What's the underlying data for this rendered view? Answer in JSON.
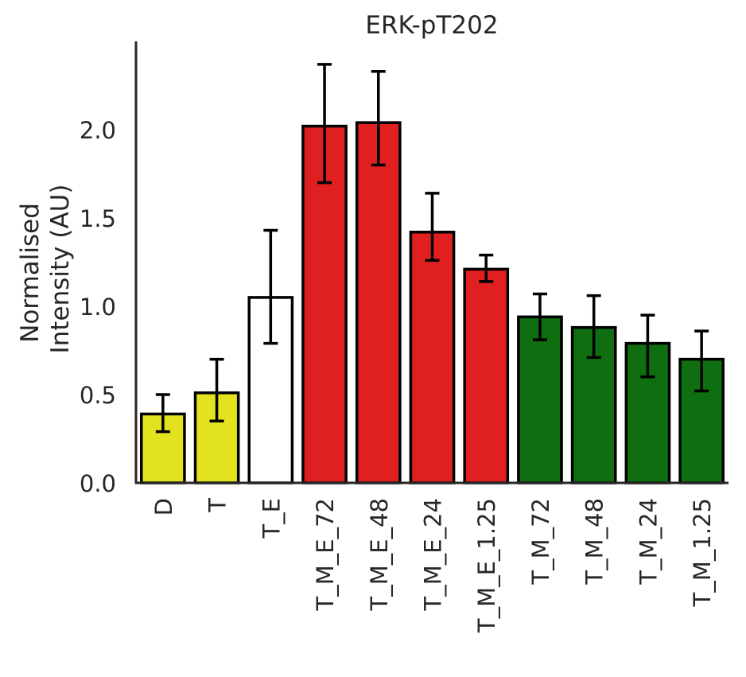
{
  "chart_data": {
    "type": "bar",
    "title": "ERK-pT202",
    "ylabel_lines": [
      "Normalised",
      "Intensity (AU)"
    ],
    "xlabel": "",
    "categories": [
      "D",
      "T",
      "T_E",
      "T_M_E_72",
      "T_M_E_48",
      "T_M_E_24",
      "T_M_E_1.25",
      "T_M_72",
      "T_M_48",
      "T_M_24",
      "T_M_1.25"
    ],
    "values": [
      0.39,
      0.51,
      1.05,
      2.02,
      2.04,
      1.42,
      1.21,
      0.94,
      0.88,
      0.79,
      0.7
    ],
    "err_low": [
      0.29,
      0.35,
      0.79,
      1.7,
      1.8,
      1.26,
      1.14,
      0.81,
      0.71,
      0.6,
      0.52
    ],
    "err_high": [
      0.5,
      0.7,
      1.43,
      2.37,
      2.33,
      1.64,
      1.29,
      1.07,
      1.06,
      0.95,
      0.86
    ],
    "colors": [
      "#e2e21e",
      "#e2e21e",
      "#ffffff",
      "#e02020",
      "#e02020",
      "#e02020",
      "#e02020",
      "#0f6e0f",
      "#0f6e0f",
      "#0f6e0f",
      "#0f6e0f"
    ],
    "ylim": [
      0,
      2.5
    ],
    "yticks": [
      0.0,
      0.5,
      1.0,
      1.5,
      2.0
    ],
    "ytick_labels": [
      "0.0",
      "0.5",
      "1.0",
      "1.5",
      "2.0"
    ],
    "grid": false,
    "legend": "none"
  }
}
